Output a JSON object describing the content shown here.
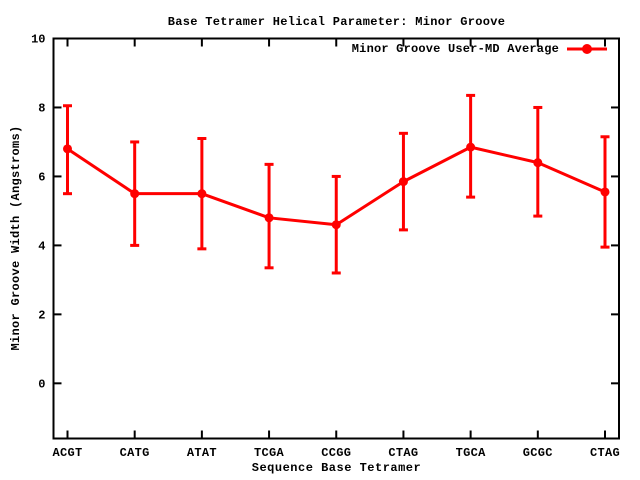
{
  "chart_data": {
    "type": "line",
    "title": "Base Tetramer Helical Parameter: Minor Groove",
    "xlabel": "Sequence Base Tetramer",
    "ylabel": "Minor Groove Width (Angstroms)",
    "categories": [
      "ACGT",
      "CATG",
      "ATAT",
      "TCGA",
      "CCGG",
      "CTAG",
      "TGCA",
      "GCGC",
      "CTAG"
    ],
    "series": [
      {
        "name": "Minor Groove User-MD Average",
        "values": [
          6.8,
          5.5,
          5.5,
          4.8,
          4.6,
          5.85,
          6.85,
          6.4,
          5.55
        ],
        "error_high": [
          8.05,
          7.0,
          7.1,
          6.35,
          6.0,
          7.25,
          8.35,
          8.0,
          7.15
        ],
        "error_low": [
          5.5,
          4.0,
          3.9,
          3.35,
          3.2,
          4.45,
          5.4,
          4.85,
          3.95
        ],
        "color": "#ff0000",
        "marker": "filled-circle",
        "style": "linespoints-with-errorbars"
      }
    ],
    "ylim": [
      -1.6,
      10
    ],
    "yticks": [
      0,
      2,
      4,
      6,
      8,
      10
    ],
    "grid": false,
    "legend_position": "top-right-inside",
    "axis_color": "#000000",
    "background_color": "#ffffff"
  }
}
